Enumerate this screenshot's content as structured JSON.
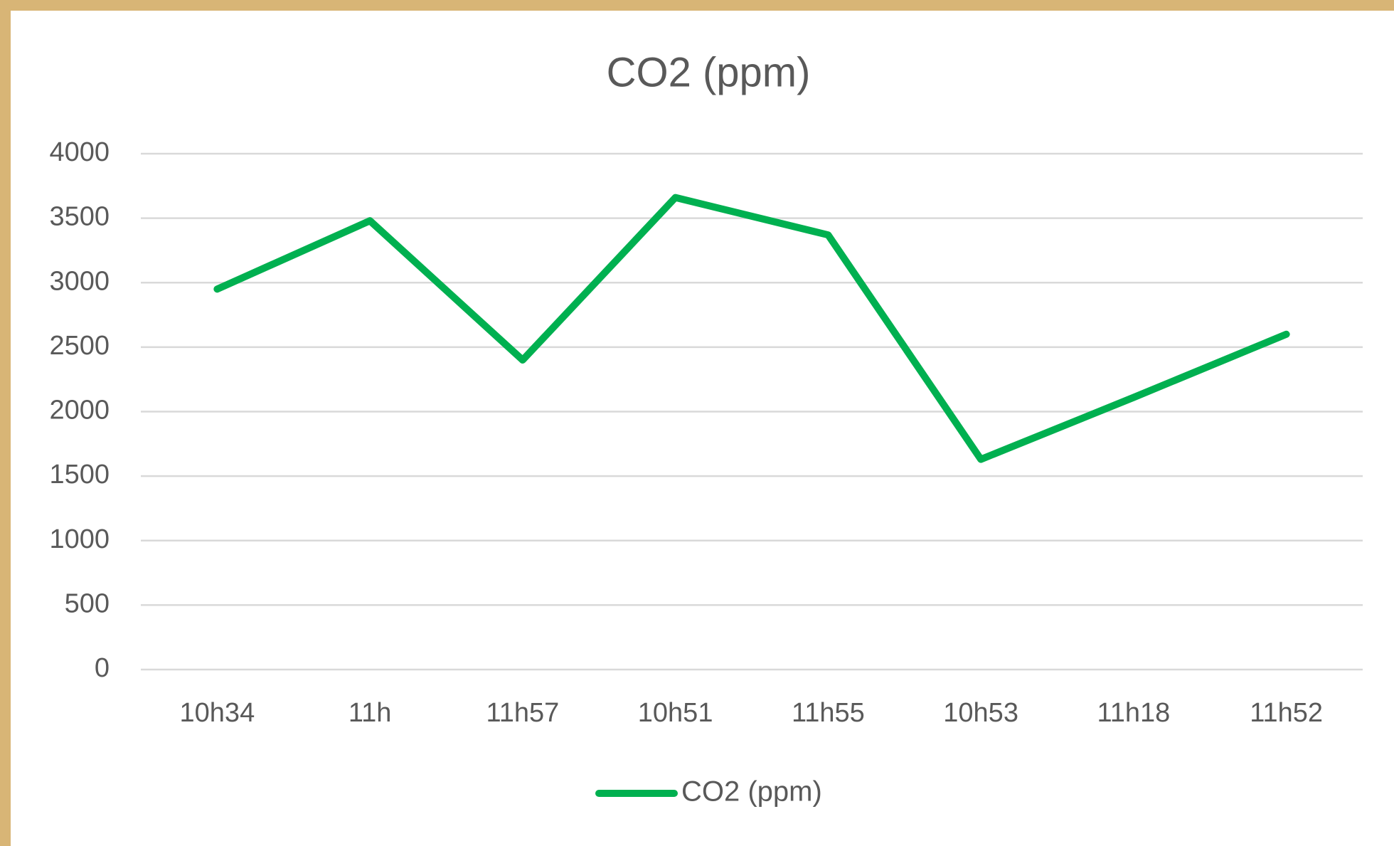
{
  "chart_data": {
    "type": "line",
    "title": "CO2 (ppm)",
    "categories": [
      "10h34",
      "11h",
      "11h57",
      "10h51",
      "11h55",
      "10h53",
      "11h18",
      "11h52"
    ],
    "series": [
      {
        "name": "CO2 (ppm)",
        "color": "#00b050",
        "values": [
          2950,
          3480,
          2400,
          3660,
          3370,
          1630,
          2110,
          2600
        ]
      }
    ],
    "ylim": [
      0,
      4000
    ],
    "yticks": [
      0,
      500,
      1000,
      1500,
      2000,
      2500,
      3000,
      3500,
      4000
    ],
    "grid": true,
    "legend": "bottom"
  }
}
